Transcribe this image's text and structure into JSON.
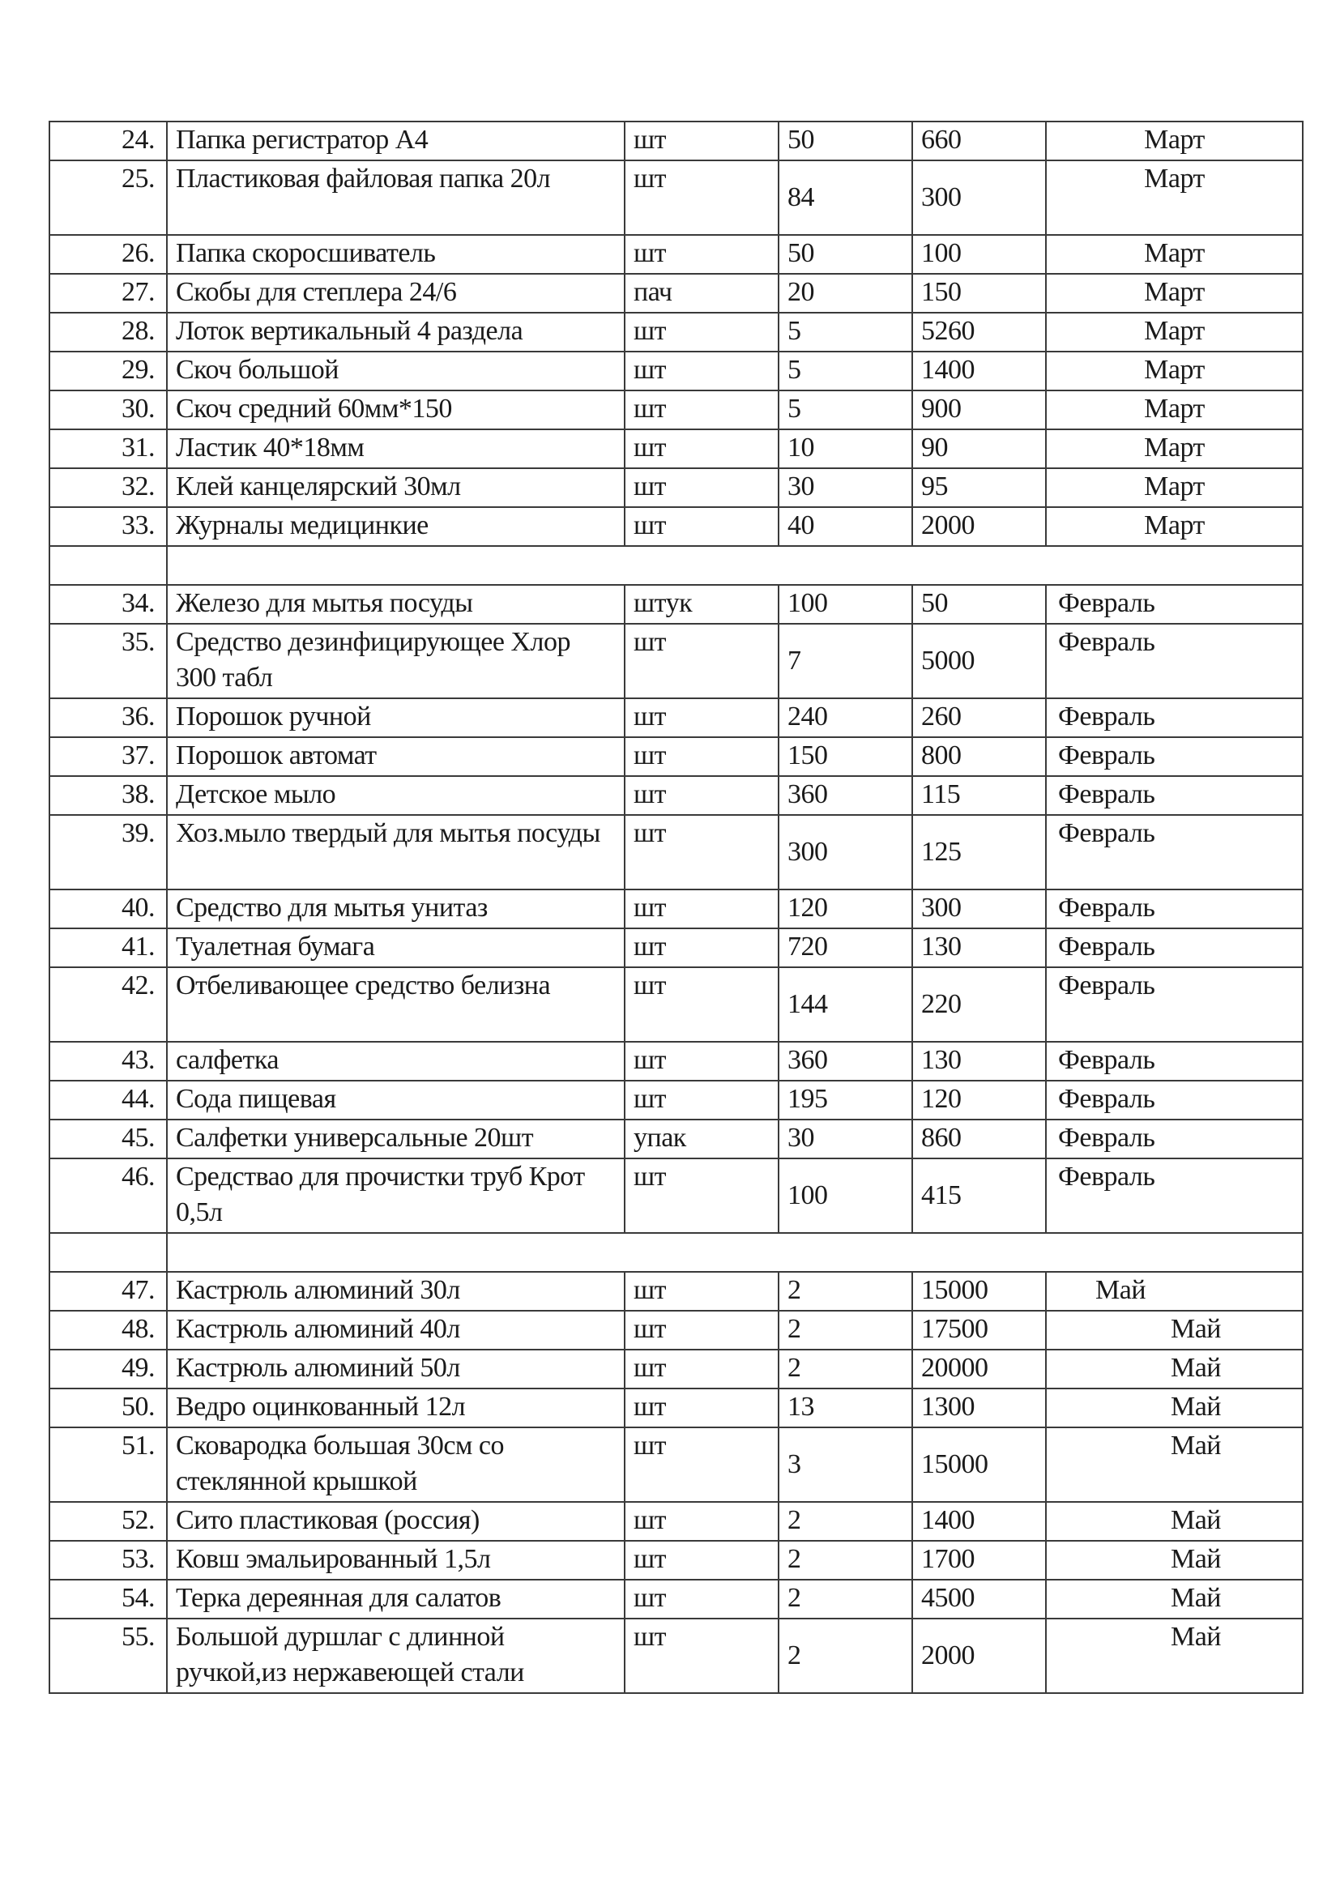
{
  "table": {
    "sections": [
      {
        "rows": [
          {
            "n": "24.",
            "name": "Папка регистратор А4",
            "unit": "шт",
            "qty": "50",
            "price": "660",
            "month": "Март"
          },
          {
            "n": "25.",
            "name": "Пластиковая файловая папка 20л",
            "unit": "шт",
            "qty": "84",
            "price": "300",
            "month": "Март"
          },
          {
            "n": "26.",
            "name": "Папка скоросшиватель",
            "unit": "шт",
            "qty": "50",
            "price": "100",
            "month": "Март"
          },
          {
            "n": "27.",
            "name": "Скобы для степлера 24/6",
            "unit": "пач",
            "qty": "20",
            "price": "150",
            "month": "Март"
          },
          {
            "n": "28.",
            "name": "Лоток вертикальный 4 раздела",
            "unit": "шт",
            "qty": "5",
            "price": "5260",
            "month": "Март"
          },
          {
            "n": "29.",
            "name": "Скоч большой",
            "unit": "шт",
            "qty": "5",
            "price": "1400",
            "month": "Март"
          },
          {
            "n": "30.",
            "name": "Скоч средний 60мм*150",
            "unit": "шт",
            "qty": "5",
            "price": "900",
            "month": "Март"
          },
          {
            "n": "31.",
            "name": "Ластик 40*18мм",
            "unit": "шт",
            "qty": "10",
            "price": "90",
            "month": "Март"
          },
          {
            "n": "32.",
            "name": "Клей канцелярский 30мл",
            "unit": "шт",
            "qty": "30",
            "price": "95",
            "month": "Март"
          },
          {
            "n": "33.",
            "name": "Журналы медицинкие",
            "unit": "шт",
            "qty": "40",
            "price": "2000",
            "month": "Март"
          }
        ]
      },
      {
        "rows": [
          {
            "n": "34.",
            "name": "Железо для мытья посуды",
            "unit": "штук",
            "qty": "100",
            "price": "50",
            "month": "Февраль"
          },
          {
            "n": "35.",
            "name": "Средство дезинфицирующее Хлор 300 табл",
            "unit": "шт",
            "qty": "7",
            "price": "5000",
            "month": "Февраль"
          },
          {
            "n": "36.",
            "name": "Порошок ручной",
            "unit": "шт",
            "qty": "240",
            "price": "260",
            "month": "Февраль"
          },
          {
            "n": "37.",
            "name": "Порошок автомат",
            "unit": "шт",
            "qty": "150",
            "price": "800",
            "month": "Февраль"
          },
          {
            "n": "38.",
            "name": "Детское мыло",
            "unit": "шт",
            "qty": "360",
            "price": "115",
            "month": "Февраль"
          },
          {
            "n": "39.",
            "name": "Хоз.мыло твердый для мытья посуды",
            "unit": "шт",
            "qty": "300",
            "price": "125",
            "month": "Февраль"
          },
          {
            "n": "40.",
            "name": "Средство для мытья унитаз",
            "unit": "шт",
            "qty": "120",
            "price": "300",
            "month": "Февраль"
          },
          {
            "n": "41.",
            "name": "Туалетная бумага",
            "unit": "шт",
            "qty": "720",
            "price": "130",
            "month": "Февраль"
          },
          {
            "n": "42.",
            "name": "Отбеливающее средство белизна",
            "unit": "шт",
            "qty": "144",
            "price": "220",
            "month": "Февраль"
          },
          {
            "n": "43.",
            "name": "салфетка",
            "unit": "шт",
            "qty": "360",
            "price": "130",
            "month": "Февраль"
          },
          {
            "n": "44.",
            "name": "Сода пищевая",
            "unit": "шт",
            "qty": "195",
            "price": "120",
            "month": "Февраль"
          },
          {
            "n": "45.",
            "name": "Салфетки универсальные 20шт",
            "unit": "упак",
            "qty": "30",
            "price": "860",
            "month": "Февраль"
          },
          {
            "n": "46.",
            "name": "Средствао для прочистки труб Крот 0,5л",
            "unit": "шт",
            "qty": "100",
            "price": "415",
            "month": "Февраль"
          }
        ]
      },
      {
        "rows": [
          {
            "n": "47.",
            "name": "Кастрюль алюминий 30л",
            "unit": "шт",
            "qty": "2",
            "price": "15000",
            "month": "Май"
          },
          {
            "n": "48.",
            "name": "Кастрюль алюминий 40л",
            "unit": "шт",
            "qty": "2",
            "price": "17500",
            "month": "Май"
          },
          {
            "n": "49.",
            "name": "Кастрюль алюминий 50л",
            "unit": "шт",
            "qty": "2",
            "price": "20000",
            "month": "Май"
          },
          {
            "n": "50.",
            "name": "Ведро оцинкованный 12л",
            "unit": "шт",
            "qty": "13",
            "price": "1300",
            "month": "Май"
          },
          {
            "n": "51.",
            "name": "Сковародка  большая 30см со стеклянной крышкой",
            "unit": "шт",
            "qty": "3",
            "price": "15000",
            "month": "Май"
          },
          {
            "n": "52.",
            "name": "Сито пластиковая (россия)",
            "unit": "шт",
            "qty": "2",
            "price": "1400",
            "month": "Май"
          },
          {
            "n": "53.",
            "name": "Ковш эмальированный 1,5л",
            "unit": "шт",
            "qty": "2",
            "price": "1700",
            "month": "Май"
          },
          {
            "n": "54.",
            "name": "Терка дереянная для салатов",
            "unit": "шт",
            "qty": "2",
            "price": "4500",
            "month": "Май"
          },
          {
            "n": "55.",
            "name": "Большой дуршлаг с длинной ручкой,из нержавеющей стали",
            "unit": "шт",
            "qty": "2",
            "price": "2000",
            "month": "Май"
          }
        ]
      }
    ]
  }
}
